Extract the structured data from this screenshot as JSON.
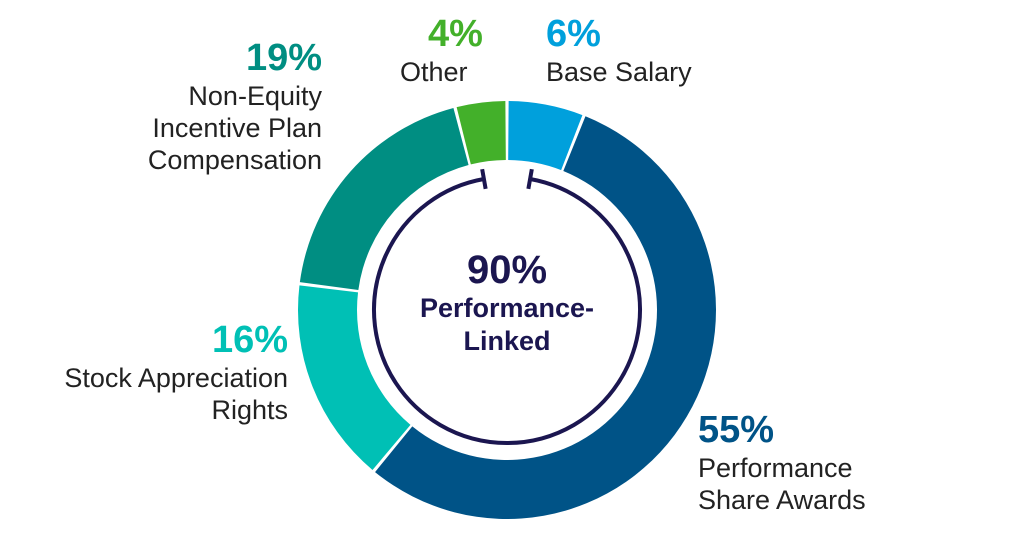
{
  "chart_data": {
    "type": "pie",
    "variant": "donut",
    "slices": [
      {
        "label": "Base Salary",
        "value": 6,
        "value_label": "6%",
        "color": "#00a0dc"
      },
      {
        "label": "Performance Share Awards",
        "value": 55,
        "value_label": "55%",
        "color": "#005387"
      },
      {
        "label": "Stock Appreciation Rights",
        "value": 16,
        "value_label": "16%",
        "color": "#00c0b5"
      },
      {
        "label": "Non-Equity Incentive Plan Compensation",
        "value": 19,
        "value_label": "19%",
        "color": "#008e82"
      },
      {
        "label": "Other",
        "value": 4,
        "value_label": "4%",
        "color": "#43b02a"
      }
    ],
    "center": {
      "value_label": "90%",
      "line1": "Performance-",
      "line2": "Linked",
      "color": "#1b1650"
    }
  }
}
